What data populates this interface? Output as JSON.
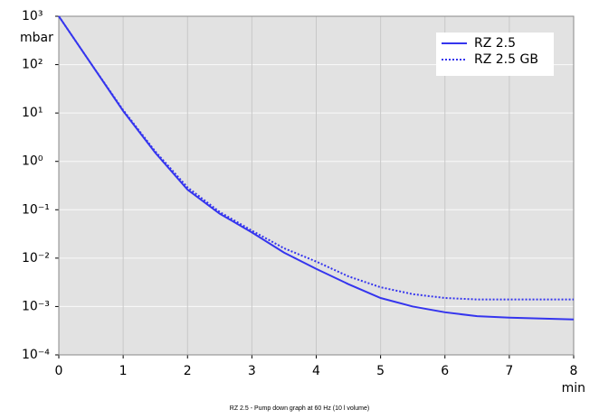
{
  "chart_data": {
    "type": "line",
    "caption": "RZ 2.5 - Pump down graph at 60 Hz (10 l volume)",
    "y_label": "mbar",
    "x_label": "min",
    "x": [
      0,
      0.5,
      1,
      1.5,
      2,
      2.5,
      3,
      3.5,
      4,
      4.5,
      5,
      5.5,
      6,
      6.5,
      7,
      8
    ],
    "series": [
      {
        "name": "RZ 2.5",
        "color": "#3535ee",
        "style": "solid",
        "values": [
          1000,
          105,
          11,
          1.5,
          0.26,
          0.083,
          0.034,
          0.013,
          0.006,
          0.0029,
          0.0015,
          0.001,
          0.00076,
          0.00063,
          0.00059,
          0.00054
        ]
      },
      {
        "name": "RZ 2.5 GB",
        "color": "#3535ee",
        "style": "dotted",
        "values": [
          1000,
          105,
          11.5,
          1.6,
          0.29,
          0.09,
          0.037,
          0.016,
          0.0085,
          0.0042,
          0.0025,
          0.0018,
          0.0015,
          0.0014,
          0.0014,
          0.0014
        ]
      }
    ],
    "xlim": [
      0,
      8
    ],
    "xticks": [
      0,
      1,
      2,
      3,
      4,
      5,
      6,
      7,
      8
    ],
    "ylim": [
      0.0001,
      1000
    ],
    "log_y": true,
    "yticks": [
      {
        "value": 1000,
        "label": "10³"
      },
      {
        "value": 100,
        "label": "10²"
      },
      {
        "value": 10,
        "label": "10¹"
      },
      {
        "value": 1,
        "label": "10⁰"
      },
      {
        "value": 0.1,
        "label": "10⁻¹"
      },
      {
        "value": 0.01,
        "label": "10⁻²"
      },
      {
        "value": 0.001,
        "label": "10⁻³"
      },
      {
        "value": 0.0001,
        "label": "10⁻⁴"
      }
    ],
    "grid": true,
    "legend": "upper right"
  }
}
